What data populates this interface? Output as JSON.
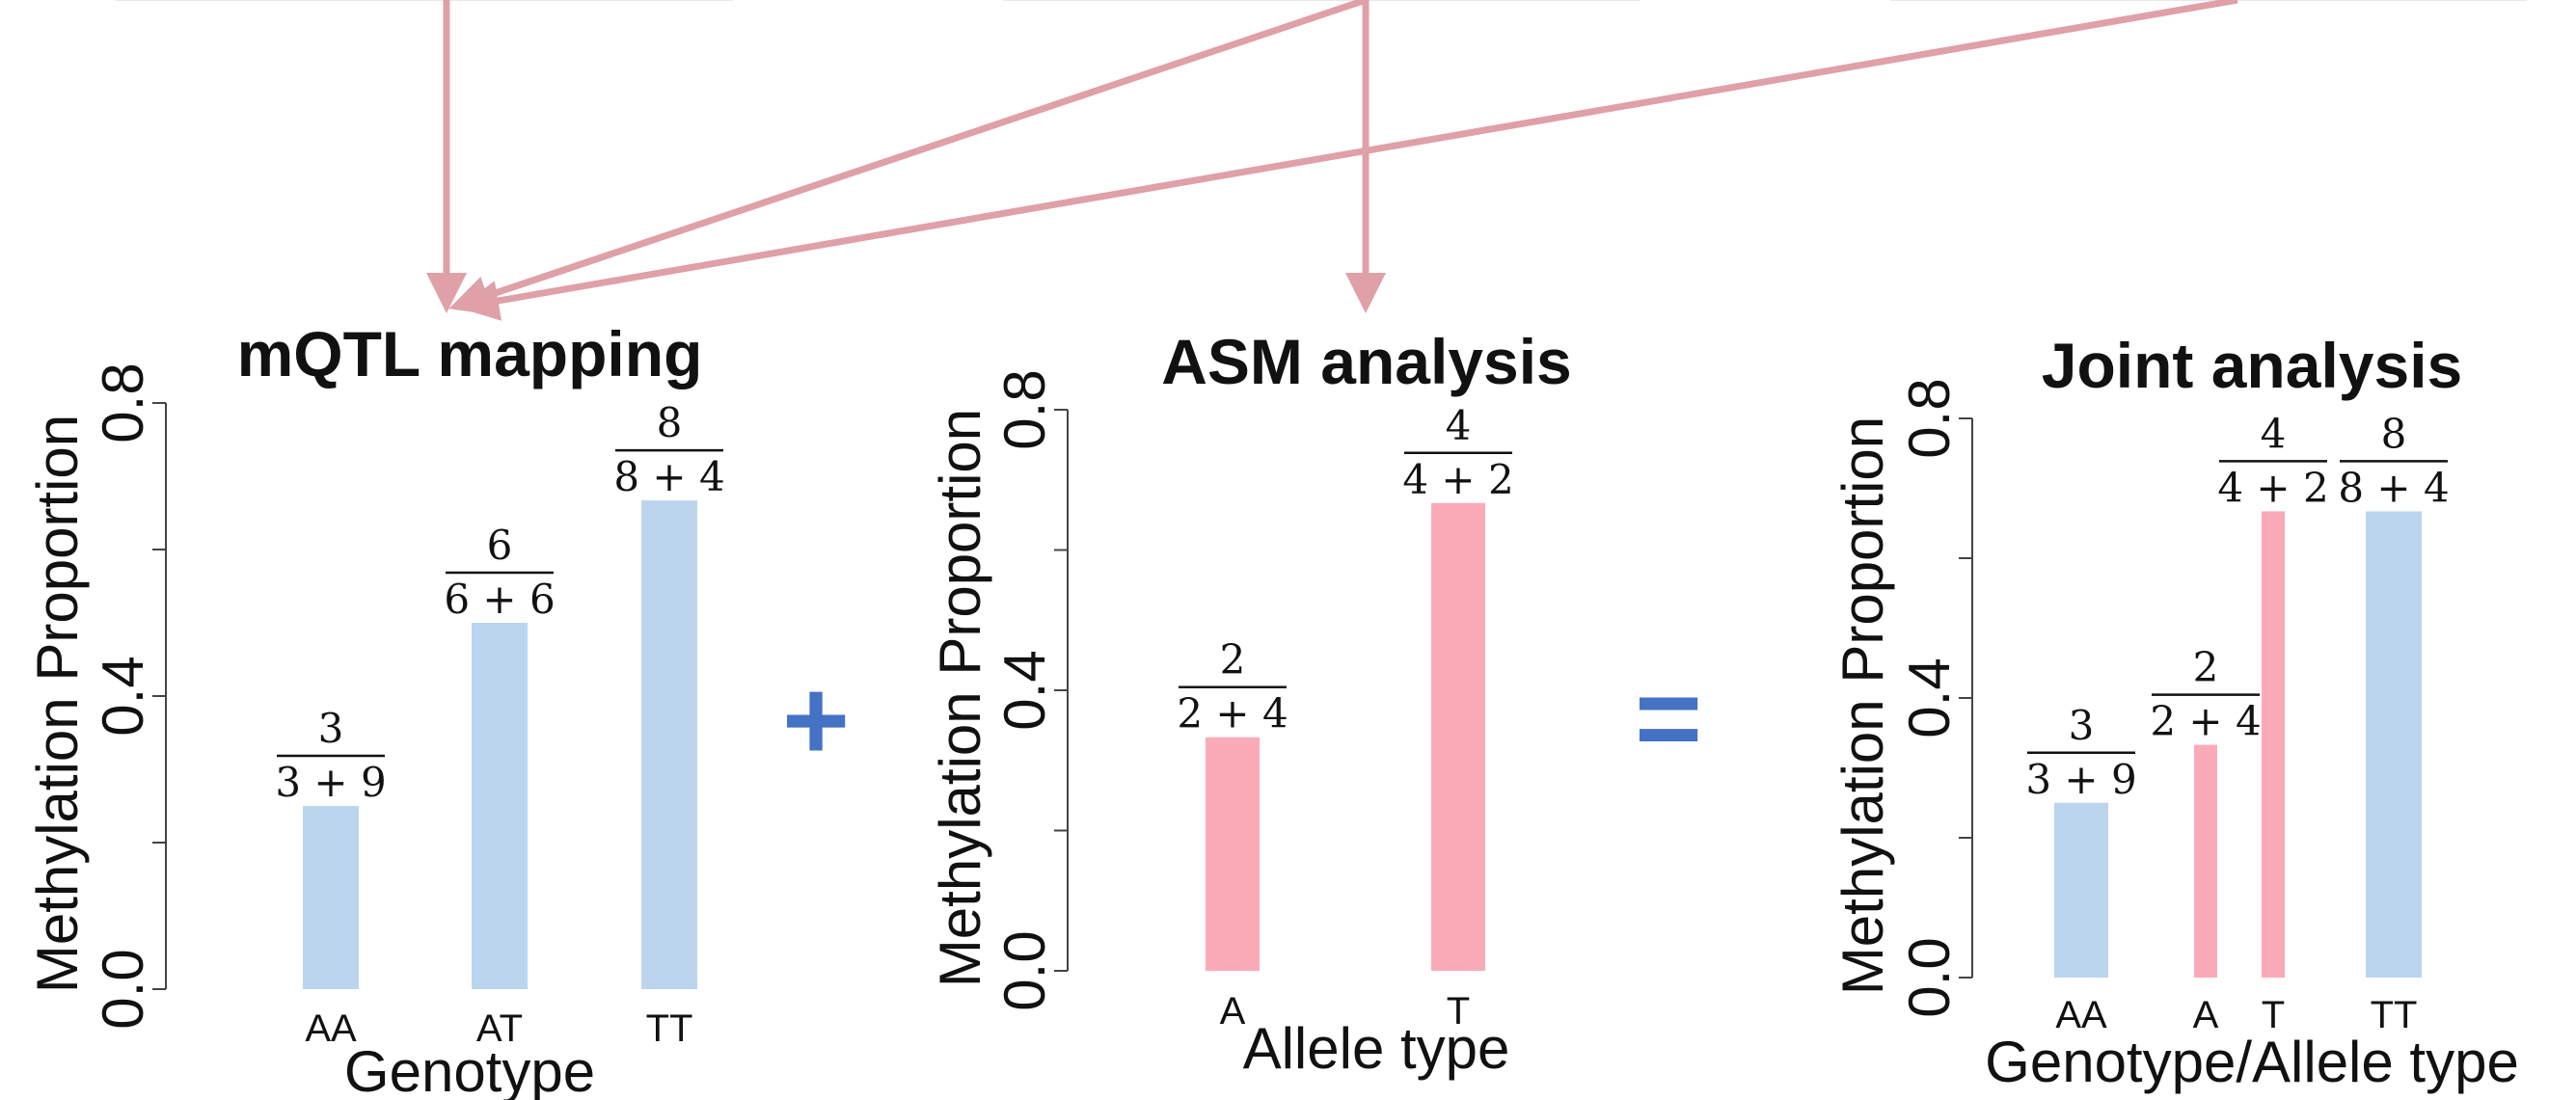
{
  "colors": {
    "genotype_bar": "#bcd5ee",
    "allele_bar": "#fbaab8",
    "arrow": "#dfa0a8",
    "operator": "#4472c4"
  },
  "operators": {
    "plus": "+",
    "equals": "="
  },
  "chart_data": [
    {
      "type": "bar",
      "title": "mQTL mapping",
      "ylabel": "Methylation Proportion",
      "xlabel": "Genotype",
      "ylim": [
        0,
        0.8
      ],
      "yticks": [
        "0.0",
        "0.4",
        "0.8"
      ],
      "bars": [
        {
          "category": "AA",
          "value": 0.25,
          "kind": "genotype",
          "num": "3",
          "den": "3 + 9"
        },
        {
          "category": "AT",
          "value": 0.5,
          "kind": "genotype",
          "num": "6",
          "den": "6 + 6"
        },
        {
          "category": "TT",
          "value": 0.667,
          "kind": "genotype",
          "num": "8",
          "den": "8 + 4"
        }
      ]
    },
    {
      "type": "bar",
      "title": "ASM analysis",
      "ylabel": "Methylation Proportion",
      "xlabel": "Allele type",
      "ylim": [
        0,
        0.8
      ],
      "yticks": [
        "0.0",
        "0.4",
        "0.8"
      ],
      "bars": [
        {
          "category": "A",
          "value": 0.333,
          "kind": "allele",
          "num": "2",
          "den": "2 + 4"
        },
        {
          "category": "T",
          "value": 0.667,
          "kind": "allele",
          "num": "4",
          "den": "4 + 2"
        }
      ]
    },
    {
      "type": "bar",
      "title": "Joint analysis",
      "ylabel": "Methylation Proportion",
      "xlabel": "Genotype/Allele type",
      "ylim": [
        0,
        0.8
      ],
      "yticks": [
        "0.0",
        "0.4",
        "0.8"
      ],
      "bars": [
        {
          "category": "AA",
          "value": 0.25,
          "kind": "genotype",
          "num": "3",
          "den": "3 + 9"
        },
        {
          "category": "A",
          "value": 0.333,
          "kind": "allele",
          "num": "2",
          "den": "2 + 4"
        },
        {
          "category": "T",
          "value": 0.667,
          "kind": "allele",
          "num": "4",
          "den": "4 + 2"
        },
        {
          "category": "TT",
          "value": 0.667,
          "kind": "genotype",
          "num": "8",
          "den": "8 + 4"
        }
      ]
    }
  ]
}
